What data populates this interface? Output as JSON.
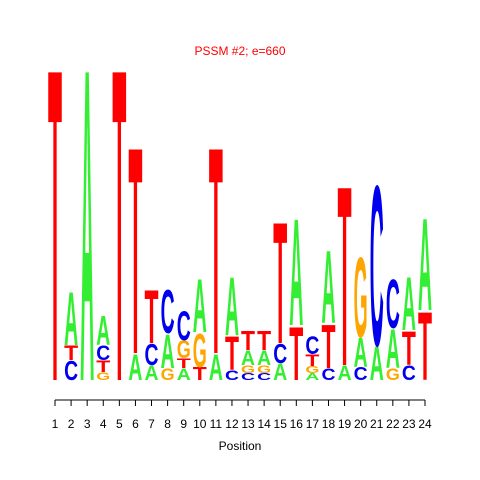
{
  "chart_data": {
    "type": "logo",
    "title": "PSSM #2; e=660",
    "x_label": "Position",
    "x": [
      1,
      2,
      3,
      4,
      5,
      6,
      7,
      8,
      9,
      10,
      11,
      12,
      13,
      14,
      15,
      16,
      17,
      18,
      19,
      20,
      21,
      22,
      23,
      24
    ],
    "xticks": [
      1,
      2,
      3,
      4,
      5,
      6,
      7,
      8,
      9,
      10,
      11,
      12,
      13,
      14,
      15,
      16,
      17,
      18,
      19,
      20,
      21,
      22,
      23,
      24
    ],
    "colors": {
      "A": "#33ee33",
      "C": "#0000ee",
      "G": "#ffa500",
      "T": "#ff0000"
    },
    "stacks": [
      [
        {
          "letter": "T",
          "height": 322
        }
      ],
      [
        {
          "letter": "C",
          "height": 20
        },
        {
          "letter": "T",
          "height": 15
        },
        {
          "letter": "A",
          "height": 55
        }
      ],
      [
        {
          "letter": "A",
          "height": 322
        }
      ],
      [
        {
          "letter": "G",
          "height": 8
        },
        {
          "letter": "T",
          "height": 12
        },
        {
          "letter": "C",
          "height": 15
        },
        {
          "letter": "A",
          "height": 30
        }
      ],
      [
        {
          "letter": "T",
          "height": 322
        }
      ],
      [
        {
          "letter": "A",
          "height": 27
        },
        {
          "letter": "T",
          "height": 213
        }
      ],
      [
        {
          "letter": "A",
          "height": 15
        },
        {
          "letter": "C",
          "height": 22
        },
        {
          "letter": "T",
          "height": 55
        }
      ],
      [
        {
          "letter": "G",
          "height": 12
        },
        {
          "letter": "A",
          "height": 35
        },
        {
          "letter": "C",
          "height": 45
        }
      ],
      [
        {
          "letter": "A",
          "height": 12
        },
        {
          "letter": "T",
          "height": 10
        },
        {
          "letter": "G",
          "height": 18
        },
        {
          "letter": "C",
          "height": 30
        }
      ],
      [
        {
          "letter": "T",
          "height": 13
        },
        {
          "letter": "G",
          "height": 35
        },
        {
          "letter": "A",
          "height": 55
        }
      ],
      [
        {
          "letter": "A",
          "height": 27
        },
        {
          "letter": "T",
          "height": 213
        }
      ],
      [
        {
          "letter": "C",
          "height": 10
        },
        {
          "letter": "T",
          "height": 35
        },
        {
          "letter": "A",
          "height": 60
        }
      ],
      [
        {
          "letter": "C",
          "height": 7
        },
        {
          "letter": "G",
          "height": 8
        },
        {
          "letter": "A",
          "height": 15
        },
        {
          "letter": "T",
          "height": 20
        }
      ],
      [
        {
          "letter": "C",
          "height": 7
        },
        {
          "letter": "G",
          "height": 8
        },
        {
          "letter": "A",
          "height": 15
        },
        {
          "letter": "T",
          "height": 20
        }
      ],
      [
        {
          "letter": "A",
          "height": 17
        },
        {
          "letter": "C",
          "height": 20
        },
        {
          "letter": "T",
          "height": 125
        }
      ],
      [
        {
          "letter": "T",
          "height": 55
        },
        {
          "letter": "A",
          "height": 110
        }
      ],
      [
        {
          "letter": "A",
          "height": 7
        },
        {
          "letter": "G",
          "height": 7
        },
        {
          "letter": "T",
          "height": 12
        },
        {
          "letter": "C",
          "height": 18
        }
      ],
      [
        {
          "letter": "C",
          "height": 12
        },
        {
          "letter": "T",
          "height": 45
        },
        {
          "letter": "A",
          "height": 75
        }
      ],
      [
        {
          "letter": "A",
          "height": 15
        },
        {
          "letter": "T",
          "height": 185
        }
      ],
      [
        {
          "letter": "C",
          "height": 13
        },
        {
          "letter": "A",
          "height": 30
        },
        {
          "letter": "G",
          "height": 82
        }
      ],
      [
        {
          "letter": "A",
          "height": 35
        },
        {
          "letter": "C",
          "height": 165
        }
      ],
      [
        {
          "letter": "G",
          "height": 12
        },
        {
          "letter": "A",
          "height": 40
        },
        {
          "letter": "C",
          "height": 50
        }
      ],
      [
        {
          "letter": "C",
          "height": 15
        },
        {
          "letter": "T",
          "height": 35
        },
        {
          "letter": "A",
          "height": 55
        }
      ],
      [
        {
          "letter": "T",
          "height": 70
        },
        {
          "letter": "A",
          "height": 95
        }
      ]
    ]
  }
}
